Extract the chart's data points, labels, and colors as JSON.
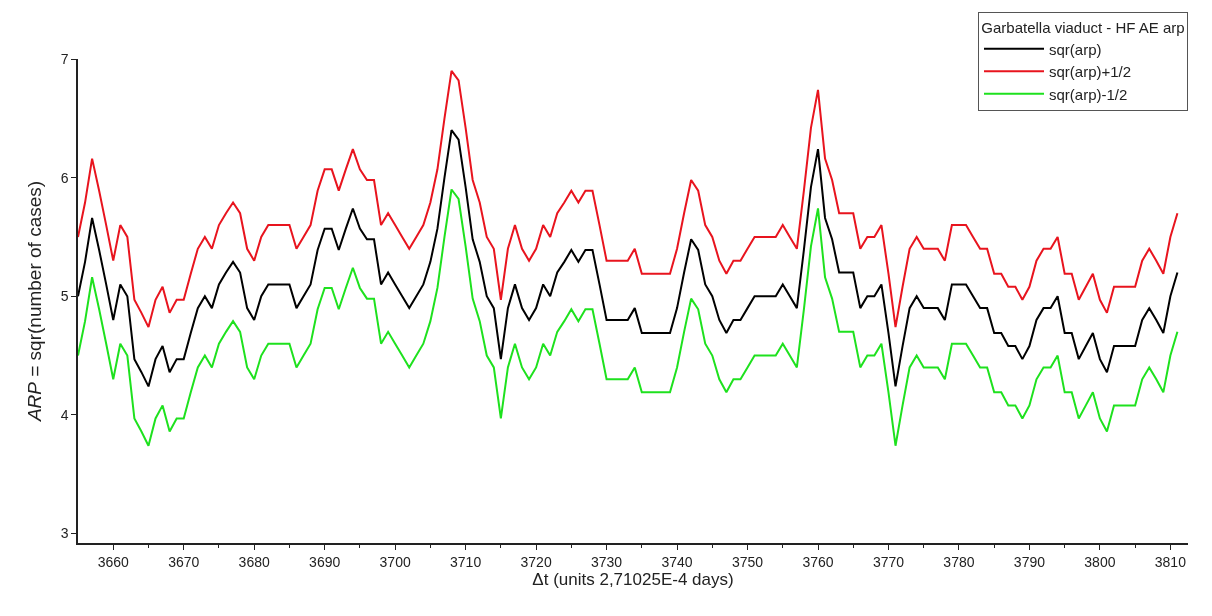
{
  "chart_data": {
    "type": "line",
    "xlabel": "Δt (units 2,71025E-4 days)",
    "ylabel": "ARP = sqr(number of cases)",
    "legend_title": "Garbatella viaduct - HF AE arp",
    "x": [
      3655,
      3656,
      3657,
      3658,
      3659,
      3660,
      3661,
      3662,
      3663,
      3664,
      3665,
      3666,
      3667,
      3668,
      3669,
      3670,
      3671,
      3672,
      3673,
      3674,
      3675,
      3676,
      3677,
      3678,
      3679,
      3680,
      3681,
      3682,
      3683,
      3684,
      3685,
      3686,
      3687,
      3688,
      3689,
      3690,
      3691,
      3692,
      3693,
      3694,
      3695,
      3696,
      3697,
      3698,
      3699,
      3700,
      3701,
      3702,
      3703,
      3704,
      3705,
      3706,
      3707,
      3708,
      3709,
      3710,
      3711,
      3712,
      3713,
      3714,
      3715,
      3716,
      3717,
      3718,
      3719,
      3720,
      3721,
      3722,
      3723,
      3724,
      3725,
      3726,
      3727,
      3728,
      3729,
      3730,
      3731,
      3732,
      3733,
      3734,
      3735,
      3736,
      3737,
      3738,
      3739,
      3740,
      3741,
      3742,
      3743,
      3744,
      3745,
      3746,
      3747,
      3748,
      3749,
      3750,
      3751,
      3752,
      3753,
      3754,
      3755,
      3756,
      3757,
      3758,
      3759,
      3760,
      3761,
      3762,
      3763,
      3764,
      3765,
      3766,
      3767,
      3768,
      3769,
      3770,
      3771,
      3772,
      3773,
      3774,
      3775,
      3776,
      3777,
      3778,
      3779,
      3780,
      3781,
      3782,
      3783,
      3784,
      3785,
      3786,
      3787,
      3788,
      3789,
      3790,
      3791,
      3792,
      3793,
      3794,
      3795,
      3796,
      3797,
      3798,
      3799,
      3800,
      3801,
      3802,
      3803,
      3804,
      3805,
      3806,
      3807,
      3808,
      3809,
      3810,
      3811
    ],
    "series": [
      {
        "name": "sqr(arp)",
        "color": "#000000",
        "values": [
          5.0,
          5.29,
          5.66,
          5.39,
          5.1,
          4.8,
          5.1,
          5.0,
          4.47,
          4.36,
          4.24,
          4.47,
          4.58,
          4.36,
          4.47,
          4.47,
          4.69,
          4.9,
          5.0,
          4.9,
          5.1,
          5.2,
          5.29,
          5.2,
          4.9,
          4.8,
          5.0,
          5.1,
          5.1,
          5.1,
          5.1,
          4.9,
          5.0,
          5.1,
          5.39,
          5.57,
          5.57,
          5.39,
          5.57,
          5.74,
          5.57,
          5.48,
          5.48,
          5.1,
          5.2,
          5.1,
          5.0,
          4.9,
          5.0,
          5.1,
          5.29,
          5.57,
          6.0,
          6.4,
          6.32,
          5.92,
          5.48,
          5.29,
          5.0,
          4.9,
          4.47,
          4.9,
          5.1,
          4.9,
          4.8,
          4.9,
          5.1,
          5.0,
          5.2,
          5.29,
          5.39,
          5.29,
          5.39,
          5.39,
          5.1,
          4.8,
          4.8,
          4.8,
          4.8,
          4.9,
          4.69,
          4.69,
          4.69,
          4.69,
          4.69,
          4.9,
          5.2,
          5.48,
          5.39,
          5.1,
          5.0,
          4.8,
          4.69,
          4.8,
          4.8,
          4.9,
          5.0,
          5.0,
          5.0,
          5.0,
          5.1,
          5.0,
          4.9,
          5.39,
          5.92,
          6.24,
          5.66,
          5.48,
          5.2,
          5.2,
          5.2,
          4.9,
          5.0,
          5.0,
          5.1,
          4.69,
          4.24,
          4.58,
          4.9,
          5.0,
          4.9,
          4.9,
          4.9,
          4.8,
          5.1,
          5.1,
          5.1,
          5.0,
          4.9,
          4.9,
          4.69,
          4.69,
          4.58,
          4.58,
          4.47,
          4.58,
          4.8,
          4.9,
          4.9,
          5.0,
          4.69,
          4.69,
          4.47,
          4.58,
          4.69,
          4.47,
          4.36,
          4.58,
          4.58,
          4.58,
          4.58,
          4.8,
          4.9,
          4.8,
          4.69,
          5.0,
          5.2
        ]
      },
      {
        "name": "sqr(arp)+1/2",
        "color": "#e8141e",
        "values": [
          5.5,
          5.79,
          6.16,
          5.89,
          5.6,
          5.3,
          5.6,
          5.5,
          4.97,
          4.86,
          4.74,
          4.97,
          5.08,
          4.86,
          4.97,
          4.97,
          5.19,
          5.4,
          5.5,
          5.4,
          5.6,
          5.7,
          5.79,
          5.7,
          5.4,
          5.3,
          5.5,
          5.6,
          5.6,
          5.6,
          5.6,
          5.4,
          5.5,
          5.6,
          5.89,
          6.07,
          6.07,
          5.89,
          6.07,
          6.24,
          6.07,
          5.98,
          5.98,
          5.6,
          5.7,
          5.6,
          5.5,
          5.4,
          5.5,
          5.6,
          5.79,
          6.07,
          6.5,
          6.9,
          6.82,
          6.42,
          5.98,
          5.79,
          5.5,
          5.4,
          4.97,
          5.4,
          5.6,
          5.4,
          5.3,
          5.4,
          5.6,
          5.5,
          5.7,
          5.79,
          5.89,
          5.79,
          5.89,
          5.89,
          5.6,
          5.3,
          5.3,
          5.3,
          5.3,
          5.4,
          5.19,
          5.19,
          5.19,
          5.19,
          5.19,
          5.4,
          5.7,
          5.98,
          5.89,
          5.6,
          5.5,
          5.3,
          5.19,
          5.3,
          5.3,
          5.4,
          5.5,
          5.5,
          5.5,
          5.5,
          5.6,
          5.5,
          5.4,
          5.89,
          6.42,
          6.74,
          6.16,
          5.98,
          5.7,
          5.7,
          5.7,
          5.4,
          5.5,
          5.5,
          5.6,
          5.19,
          4.74,
          5.08,
          5.4,
          5.5,
          5.4,
          5.4,
          5.4,
          5.3,
          5.6,
          5.6,
          5.6,
          5.5,
          5.4,
          5.4,
          5.19,
          5.19,
          5.08,
          5.08,
          4.97,
          5.08,
          5.3,
          5.4,
          5.4,
          5.5,
          5.19,
          5.19,
          4.97,
          5.08,
          5.19,
          4.97,
          4.86,
          5.08,
          5.08,
          5.08,
          5.08,
          5.3,
          5.4,
          5.3,
          5.19,
          5.5,
          5.7
        ]
      },
      {
        "name": "sqr(arp)-1/2",
        "color": "#1ee11e",
        "values": [
          4.5,
          4.79,
          5.16,
          4.89,
          4.6,
          4.3,
          4.6,
          4.5,
          3.97,
          3.86,
          3.74,
          3.97,
          4.08,
          3.86,
          3.97,
          3.97,
          4.19,
          4.4,
          4.5,
          4.4,
          4.6,
          4.7,
          4.79,
          4.7,
          4.4,
          4.3,
          4.5,
          4.6,
          4.6,
          4.6,
          4.6,
          4.4,
          4.5,
          4.6,
          4.89,
          5.07,
          5.07,
          4.89,
          5.07,
          5.24,
          5.07,
          4.98,
          4.98,
          4.6,
          4.7,
          4.6,
          4.5,
          4.4,
          4.5,
          4.6,
          4.79,
          5.07,
          5.5,
          5.9,
          5.82,
          5.42,
          4.98,
          4.79,
          4.5,
          4.4,
          3.97,
          4.4,
          4.6,
          4.4,
          4.3,
          4.4,
          4.6,
          4.5,
          4.7,
          4.79,
          4.89,
          4.79,
          4.89,
          4.89,
          4.6,
          4.3,
          4.3,
          4.3,
          4.3,
          4.4,
          4.19,
          4.19,
          4.19,
          4.19,
          4.19,
          4.4,
          4.7,
          4.98,
          4.89,
          4.6,
          4.5,
          4.3,
          4.19,
          4.3,
          4.3,
          4.4,
          4.5,
          4.5,
          4.5,
          4.5,
          4.6,
          4.5,
          4.4,
          4.89,
          5.42,
          5.74,
          5.16,
          4.98,
          4.7,
          4.7,
          4.7,
          4.4,
          4.5,
          4.5,
          4.6,
          4.19,
          3.74,
          4.08,
          4.4,
          4.5,
          4.4,
          4.4,
          4.4,
          4.3,
          4.6,
          4.6,
          4.6,
          4.5,
          4.4,
          4.4,
          4.19,
          4.19,
          4.08,
          4.08,
          3.97,
          4.08,
          4.3,
          4.4,
          4.4,
          4.5,
          4.19,
          4.19,
          3.97,
          4.08,
          4.19,
          3.97,
          3.86,
          4.08,
          4.08,
          4.08,
          4.08,
          4.3,
          4.4,
          4.3,
          4.19,
          4.5,
          4.7
        ]
      }
    ],
    "xlim": [
      3655,
      3812.5
    ],
    "xticks": [
      3660,
      3670,
      3680,
      3690,
      3700,
      3710,
      3720,
      3730,
      3740,
      3750,
      3760,
      3770,
      3780,
      3790,
      3800,
      3810
    ],
    "ylim": [
      2.92,
      7
    ],
    "yticks": [
      3,
      4,
      5,
      6,
      7
    ],
    "legend": "top right",
    "marker": "none",
    "line_style": "solid"
  }
}
